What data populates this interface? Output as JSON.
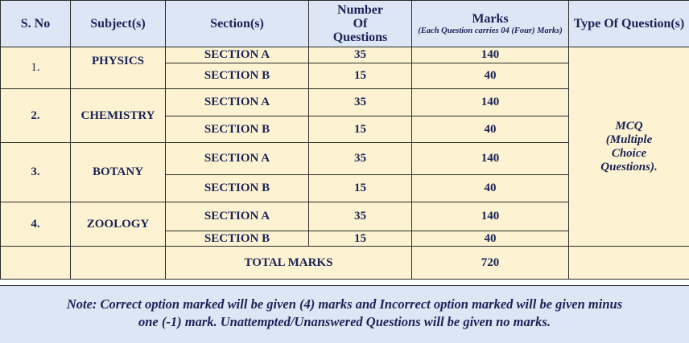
{
  "headers": {
    "sno": "S. No",
    "subject": "Subject(s)",
    "section": "Section(s)",
    "questions": [
      "Number",
      "Of",
      "Questions"
    ],
    "marks": "Marks",
    "marks_note": "(Each Question carries 04 (Four) Marks)",
    "type": "Type Of Question(s)"
  },
  "rows": [
    {
      "sno": "1.",
      "subject": "PHYSICS",
      "sections": [
        {
          "name": "SECTION A",
          "questions": "35",
          "marks": "140"
        },
        {
          "name": "SECTION B",
          "questions": "15",
          "marks": "40"
        }
      ]
    },
    {
      "sno": "2.",
      "subject": "CHEMISTRY",
      "sections": [
        {
          "name": "SECTION A",
          "questions": "35",
          "marks": "140"
        },
        {
          "name": "SECTION B",
          "questions": "15",
          "marks": "40"
        }
      ]
    },
    {
      "sno": "3.",
      "subject": "BOTANY",
      "sections": [
        {
          "name": "SECTION A",
          "questions": "35",
          "marks": "140"
        },
        {
          "name": "SECTION B",
          "questions": "15",
          "marks": "40"
        }
      ]
    },
    {
      "sno": "4.",
      "subject": "ZOOLOGY",
      "sections": [
        {
          "name": "SECTION A",
          "questions": "35",
          "marks": "140"
        },
        {
          "name": "SECTION B",
          "questions": "15",
          "marks": "40"
        }
      ]
    }
  ],
  "question_type": [
    "MCQ",
    "(Multiple",
    "Choice",
    "Questions)."
  ],
  "total": {
    "label": "TOTAL MARKS",
    "value": "720"
  },
  "note": {
    "line1": "Note: Correct option marked will be given (4) marks and Incorrect option marked will be given minus",
    "line2": "one (-1) mark. Unattempted/Unanswered Questions will be given no marks."
  },
  "colors": {
    "header_bg": "#dce6f5",
    "body_bg": "#fdf3d2",
    "text": "#1a2357",
    "border": "#2b2b2b"
  }
}
